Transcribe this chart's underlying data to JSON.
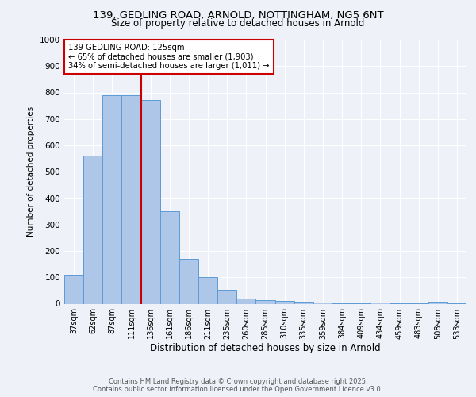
{
  "title_line1": "139, GEDLING ROAD, ARNOLD, NOTTINGHAM, NG5 6NT",
  "title_line2": "Size of property relative to detached houses in Arnold",
  "xlabel": "Distribution of detached houses by size in Arnold",
  "ylabel": "Number of detached properties",
  "categories": [
    "37sqm",
    "62sqm",
    "87sqm",
    "111sqm",
    "136sqm",
    "161sqm",
    "186sqm",
    "211sqm",
    "235sqm",
    "260sqm",
    "285sqm",
    "310sqm",
    "335sqm",
    "359sqm",
    "384sqm",
    "409sqm",
    "434sqm",
    "459sqm",
    "483sqm",
    "508sqm",
    "533sqm"
  ],
  "values": [
    110,
    560,
    790,
    790,
    770,
    350,
    170,
    100,
    52,
    20,
    15,
    10,
    8,
    5,
    3,
    1,
    4,
    1,
    1,
    8,
    1
  ],
  "bar_color": "#aec6e8",
  "bar_edge_color": "#5b9bd5",
  "annotation_line1": "139 GEDLING ROAD: 125sqm",
  "annotation_line2": "← 65% of detached houses are smaller (1,903)",
  "annotation_line3": "34% of semi-detached houses are larger (1,011) →",
  "annotation_box_color": "#ffffff",
  "annotation_box_edge": "#cc0000",
  "footer_line1": "Contains HM Land Registry data © Crown copyright and database right 2025.",
  "footer_line2": "Contains public sector information licensed under the Open Government Licence v3.0.",
  "background_color": "#eef2f8",
  "ylim": [
    0,
    1000
  ],
  "yticks": [
    0,
    100,
    200,
    300,
    400,
    500,
    600,
    700,
    800,
    900,
    1000
  ],
  "red_line_x": 3.5
}
